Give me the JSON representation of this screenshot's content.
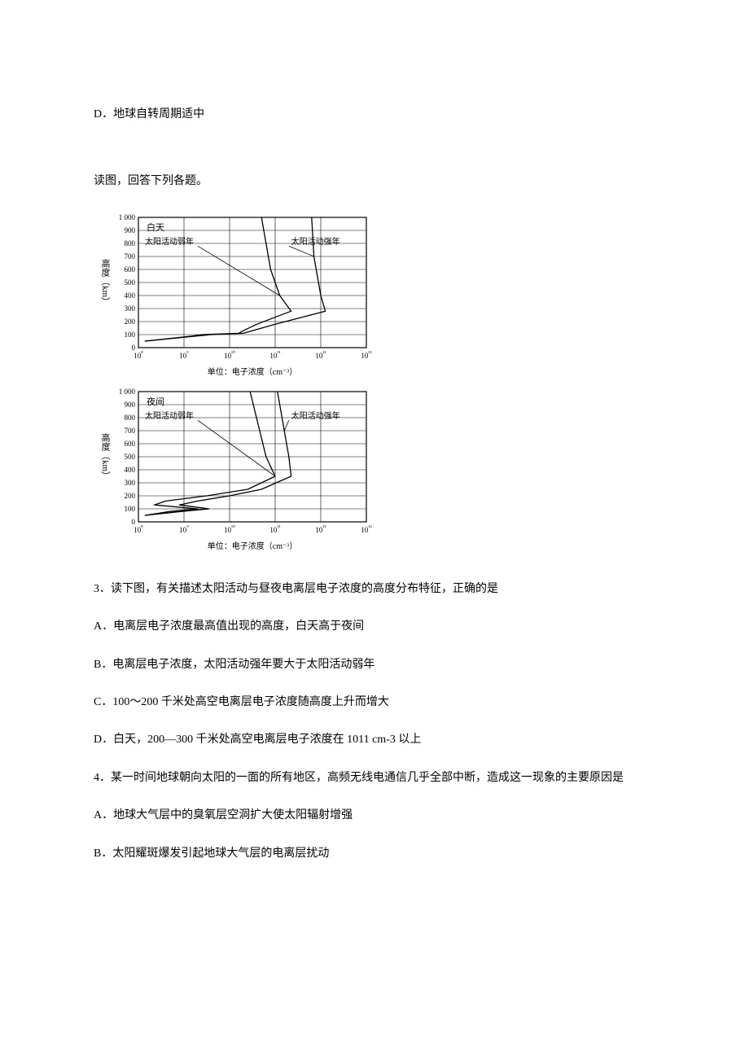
{
  "intro": {
    "option_d": "D．地球自转周期适中",
    "prompt": "读图，回答下列各题。"
  },
  "chart_day": {
    "title": "白天",
    "y_label": "高度（km）",
    "x_unit_label": "单位：电子浓度（cm⁻³）",
    "y_ticks": [
      0,
      100,
      200,
      300,
      400,
      500,
      600,
      700,
      800,
      900,
      1000
    ],
    "y_tick_labels": [
      "0",
      "100",
      "200",
      "300",
      "400",
      "500",
      "600",
      "700",
      "800",
      "900",
      "1 000"
    ],
    "x_ticks": [
      8,
      9,
      10,
      11,
      12,
      13
    ],
    "x_tick_labels": [
      "10⁸",
      "10⁹",
      "10¹⁰",
      "10¹¹",
      "10¹²",
      "10¹³"
    ],
    "annotations": {
      "weak": "太阳活动弱年",
      "strong": "太阳活动强年"
    },
    "curves": {
      "weak": [
        [
          8.15,
          50
        ],
        [
          9.2,
          90
        ],
        [
          9.4,
          100
        ],
        [
          10.2,
          110
        ],
        [
          10.3,
          130
        ],
        [
          10.6,
          180
        ],
        [
          11.35,
          280
        ],
        [
          11.1,
          400
        ],
        [
          10.9,
          600
        ],
        [
          10.7,
          1000
        ]
      ],
      "strong": [
        [
          8.15,
          50
        ],
        [
          9.3,
          90
        ],
        [
          9.6,
          100
        ],
        [
          10.3,
          110
        ],
        [
          10.5,
          130
        ],
        [
          11.0,
          180
        ],
        [
          12.1,
          280
        ],
        [
          12.0,
          400
        ],
        [
          11.85,
          700
        ],
        [
          11.8,
          1000
        ]
      ]
    },
    "stroke_color": "#000000",
    "stroke_width": 1.3,
    "grid_color": "#000000",
    "grid_width": 0.6,
    "border_color": "#000000",
    "border_width": 1.2,
    "background": "#ffffff",
    "inner_width": 280,
    "inner_height": 160
  },
  "chart_night": {
    "title": "夜间",
    "y_label": "高度（km）",
    "x_unit_label": "单位：电子浓度（cm⁻³）",
    "y_ticks": [
      0,
      100,
      200,
      300,
      400,
      500,
      600,
      700,
      800,
      900,
      1000
    ],
    "y_tick_labels": [
      "0",
      "100",
      "200",
      "300",
      "400",
      "500",
      "600",
      "700",
      "800",
      "900",
      "1 000"
    ],
    "x_ticks": [
      8,
      9,
      10,
      11,
      12,
      13
    ],
    "x_tick_labels": [
      "10⁸",
      "10⁹",
      "10¹⁰",
      "10¹¹",
      "10¹²",
      "10¹³"
    ],
    "annotations": {
      "weak": "太阳活动弱年",
      "strong": "太阳活动强年"
    },
    "curves": {
      "weak": [
        [
          8.15,
          50
        ],
        [
          8.7,
          80
        ],
        [
          9.3,
          100
        ],
        [
          8.35,
          130
        ],
        [
          8.6,
          160
        ],
        [
          9.5,
          200
        ],
        [
          10.4,
          250
        ],
        [
          11.0,
          350
        ],
        [
          10.8,
          500
        ],
        [
          10.45,
          1000
        ]
      ],
      "strong": [
        [
          8.15,
          50
        ],
        [
          8.95,
          80
        ],
        [
          9.55,
          100
        ],
        [
          8.9,
          130
        ],
        [
          9.3,
          160
        ],
        [
          10.0,
          200
        ],
        [
          10.7,
          250
        ],
        [
          11.35,
          350
        ],
        [
          11.3,
          500
        ],
        [
          11.2,
          700
        ],
        [
          11.05,
          1000
        ]
      ]
    },
    "stroke_color": "#000000",
    "stroke_width": 1.3,
    "grid_color": "#000000",
    "grid_width": 0.6,
    "border_color": "#000000",
    "border_width": 1.2,
    "background": "#ffffff",
    "inner_width": 280,
    "inner_height": 160
  },
  "q3": {
    "question": "3．读下图，有关描述太阳活动与昼夜电离层电子浓度的高度分布特征，正确的是",
    "a": "A．电离层电子浓度最高值出现的高度，白天高于夜间",
    "b": "B．电离层电子浓度，太阳活动强年要大于太阳活动弱年",
    "c": "C．100～200 千米处高空电离层电子浓度随高度上升而增大",
    "d": "D．白天，200—300 千米处高空电离层电子浓度在 1011 cm-3 以上"
  },
  "q4": {
    "question": "4．某一时间地球朝向太阳的一面的所有地区，高频无线电通信几乎全部中断，造成这一现象的主要原因是",
    "a": "A．地球大气层中的臭氧层空洞扩大使太阳辐射增强",
    "b": "B．太阳耀斑爆发引起地球大气层的电离层扰动"
  }
}
